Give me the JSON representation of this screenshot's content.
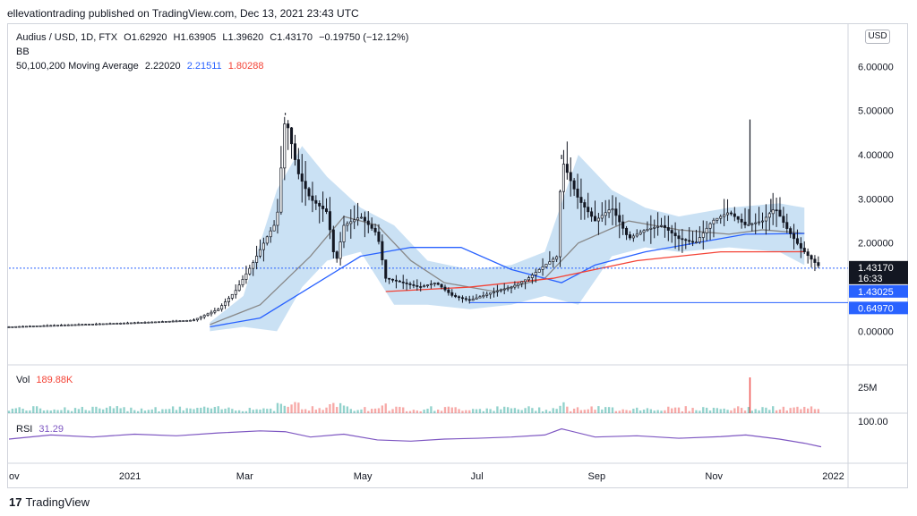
{
  "header": {
    "publish_line": "ellevationtrading published on TradingView.com, Dec 13, 2021 23:43 UTC"
  },
  "legend": {
    "symbol": "Audius / USD, 1D, FTX",
    "ohlc": {
      "o": "O1.62920",
      "h": "H1.63905",
      "l": "L1.39620",
      "c": "C1.43170",
      "change": "−0.19750 (−12.12%)"
    },
    "bb_label": "BB",
    "ma_label": "50,100,200 Moving Average",
    "ma50": "2.22020",
    "ma100": "2.21511",
    "ma200": "1.80288",
    "vol_label": "Vol",
    "vol_value": "189.88K",
    "rsi_label": "RSI",
    "rsi_value": "31.29"
  },
  "currency_button": "USD",
  "price_axis": {
    "ticks": [
      "6.00000",
      "5.00000",
      "4.00000",
      "3.00000",
      "2.00000",
      "0.00000"
    ],
    "current_price": "1.43170",
    "countdown": "16:33",
    "line_label_1": "1.43025",
    "line_label_2": "0.64970"
  },
  "volume_axis": {
    "tick": "25M"
  },
  "rsi_axis": {
    "tick": "100.00"
  },
  "time_axis": {
    "labels": [
      "ov",
      "2021",
      "Mar",
      "May",
      "Jul",
      "Sep",
      "Nov",
      "2022"
    ]
  },
  "footer": {
    "brand": "TradingView"
  },
  "colors": {
    "up": "#26a69a",
    "down": "#131722",
    "candle": "#131722",
    "bb_fill": "#b3d4f0",
    "ma50": "#888888",
    "ma100": "#2962ff",
    "ma200": "#f44336",
    "rsi": "#7e57c2",
    "hline": "#2962ff"
  },
  "chart_data": {
    "type": "candlestick",
    "price_range": [
      -0.6,
      6.9
    ],
    "horizontal_lines": [
      1.43025,
      0.6497
    ],
    "price_close_path": [
      [
        0.0,
        0.1
      ],
      [
        0.08,
        0.15
      ],
      [
        0.16,
        0.2
      ],
      [
        0.22,
        0.25
      ],
      [
        0.25,
        0.5
      ],
      [
        0.27,
        0.9
      ],
      [
        0.29,
        1.5
      ],
      [
        0.31,
        2.2
      ],
      [
        0.32,
        2.5
      ],
      [
        0.33,
        4.9
      ],
      [
        0.345,
        3.6
      ],
      [
        0.36,
        3.0
      ],
      [
        0.38,
        2.7
      ],
      [
        0.39,
        1.5
      ],
      [
        0.4,
        2.4
      ],
      [
        0.42,
        2.6
      ],
      [
        0.44,
        2.2
      ],
      [
        0.45,
        1.2
      ],
      [
        0.47,
        1.1
      ],
      [
        0.49,
        1.0
      ],
      [
        0.51,
        1.1
      ],
      [
        0.53,
        0.8
      ],
      [
        0.55,
        0.7
      ],
      [
        0.58,
        0.9
      ],
      [
        0.6,
        1.0
      ],
      [
        0.62,
        1.2
      ],
      [
        0.64,
        1.5
      ],
      [
        0.655,
        1.7
      ],
      [
        0.66,
        3.9
      ],
      [
        0.68,
        3.0
      ],
      [
        0.7,
        2.5
      ],
      [
        0.72,
        2.8
      ],
      [
        0.74,
        2.1
      ],
      [
        0.76,
        2.3
      ],
      [
        0.78,
        2.4
      ],
      [
        0.8,
        2.1
      ],
      [
        0.82,
        2.0
      ],
      [
        0.84,
        2.5
      ],
      [
        0.86,
        2.7
      ],
      [
        0.88,
        2.4
      ],
      [
        0.9,
        2.5
      ],
      [
        0.915,
        2.8
      ],
      [
        0.93,
        2.3
      ],
      [
        0.945,
        1.9
      ],
      [
        0.96,
        1.6
      ],
      [
        0.97,
        1.43
      ]
    ],
    "spikes": [
      [
        0.33,
        4.95
      ],
      [
        0.66,
        4.0
      ],
      [
        0.885,
        4.8
      ],
      [
        0.91,
        3.0
      ]
    ],
    "ma50": [
      [
        0.24,
        0.15
      ],
      [
        0.3,
        0.6
      ],
      [
        0.36,
        1.7
      ],
      [
        0.4,
        2.6
      ],
      [
        0.44,
        2.4
      ],
      [
        0.48,
        1.6
      ],
      [
        0.52,
        1.1
      ],
      [
        0.58,
        0.9
      ],
      [
        0.64,
        1.2
      ],
      [
        0.68,
        2.0
      ],
      [
        0.74,
        2.5
      ],
      [
        0.8,
        2.3
      ],
      [
        0.86,
        2.2
      ],
      [
        0.9,
        2.3
      ],
      [
        0.95,
        2.22
      ]
    ],
    "ma100": [
      [
        0.24,
        0.1
      ],
      [
        0.3,
        0.3
      ],
      [
        0.36,
        1.0
      ],
      [
        0.42,
        1.7
      ],
      [
        0.48,
        1.9
      ],
      [
        0.54,
        1.9
      ],
      [
        0.6,
        1.4
      ],
      [
        0.66,
        1.1
      ],
      [
        0.7,
        1.5
      ],
      [
        0.76,
        1.8
      ],
      [
        0.82,
        2.0
      ],
      [
        0.88,
        2.2
      ],
      [
        0.95,
        2.215
      ]
    ],
    "ma200": [
      [
        0.45,
        0.9
      ],
      [
        0.55,
        1.0
      ],
      [
        0.65,
        1.2
      ],
      [
        0.75,
        1.6
      ],
      [
        0.85,
        1.8
      ],
      [
        0.95,
        1.80288
      ]
    ],
    "bb_upper": [
      [
        0.24,
        0.2
      ],
      [
        0.28,
        0.8
      ],
      [
        0.32,
        3.2
      ],
      [
        0.35,
        4.2
      ],
      [
        0.38,
        3.5
      ],
      [
        0.42,
        2.8
      ],
      [
        0.46,
        2.4
      ],
      [
        0.5,
        1.6
      ],
      [
        0.55,
        1.4
      ],
      [
        0.6,
        1.5
      ],
      [
        0.64,
        1.8
      ],
      [
        0.68,
        4.0
      ],
      [
        0.72,
        3.2
      ],
      [
        0.76,
        2.8
      ],
      [
        0.8,
        2.6
      ],
      [
        0.86,
        2.8
      ],
      [
        0.92,
        2.9
      ],
      [
        0.95,
        2.8
      ]
    ],
    "bb_lower": [
      [
        0.24,
        0.0
      ],
      [
        0.28,
        0.1
      ],
      [
        0.32,
        0.0
      ],
      [
        0.35,
        1.0
      ],
      [
        0.38,
        1.6
      ],
      [
        0.42,
        1.8
      ],
      [
        0.46,
        0.6
      ],
      [
        0.5,
        0.6
      ],
      [
        0.55,
        0.5
      ],
      [
        0.6,
        0.6
      ],
      [
        0.64,
        0.8
      ],
      [
        0.68,
        0.6
      ],
      [
        0.72,
        1.7
      ],
      [
        0.76,
        1.9
      ],
      [
        0.8,
        1.8
      ],
      [
        0.86,
        1.9
      ],
      [
        0.92,
        1.8
      ],
      [
        0.95,
        1.5
      ]
    ],
    "rsi": [
      [
        0.0,
        50
      ],
      [
        0.05,
        60
      ],
      [
        0.1,
        55
      ],
      [
        0.15,
        62
      ],
      [
        0.2,
        58
      ],
      [
        0.25,
        65
      ],
      [
        0.3,
        70
      ],
      [
        0.33,
        68
      ],
      [
        0.36,
        55
      ],
      [
        0.4,
        62
      ],
      [
        0.44,
        48
      ],
      [
        0.48,
        45
      ],
      [
        0.52,
        50
      ],
      [
        0.56,
        52
      ],
      [
        0.6,
        55
      ],
      [
        0.64,
        60
      ],
      [
        0.66,
        75
      ],
      [
        0.7,
        55
      ],
      [
        0.75,
        58
      ],
      [
        0.8,
        52
      ],
      [
        0.85,
        56
      ],
      [
        0.88,
        60
      ],
      [
        0.92,
        50
      ],
      [
        0.95,
        40
      ],
      [
        0.97,
        31.29
      ]
    ],
    "volume_spike": [
      0.885,
      0.9
    ]
  }
}
